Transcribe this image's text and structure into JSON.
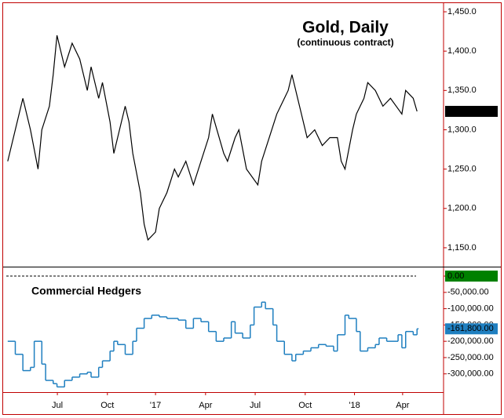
{
  "chart_data": [
    {
      "type": "line",
      "title": "Gold, Daily",
      "subtitle": "(continuous contract)",
      "color": "#000000",
      "xlim": [
        0,
        116
      ],
      "ylim": [
        1126,
        1460
      ],
      "yticks": [
        {
          "value": 1150,
          "label": "1,150.0"
        },
        {
          "value": 1200,
          "label": "1,200.0"
        },
        {
          "value": 1250,
          "label": "1,250.0"
        },
        {
          "value": 1300,
          "label": "1,300.0"
        },
        {
          "value": 1350,
          "label": "1,350.0"
        },
        {
          "value": 1400,
          "label": "1,400.0"
        },
        {
          "value": 1450,
          "label": "1,450.0"
        }
      ],
      "x": [
        1,
        5,
        7,
        9,
        10,
        12,
        13,
        14,
        16,
        18,
        20,
        22,
        23,
        25,
        26,
        28,
        29,
        30,
        32,
        33,
        34,
        36,
        37,
        38,
        40,
        41,
        43,
        45,
        46,
        48,
        50,
        52,
        54,
        55,
        58,
        59,
        61,
        62,
        64,
        67,
        68,
        70,
        72,
        75,
        76,
        78,
        80,
        82,
        84,
        86,
        88,
        89,
        90,
        92,
        93,
        95,
        96,
        98,
        100,
        102,
        105,
        106,
        108,
        109
      ],
      "values": [
        1260,
        1340,
        1300,
        1250,
        1300,
        1330,
        1370,
        1420,
        1380,
        1410,
        1390,
        1350,
        1380,
        1340,
        1360,
        1310,
        1270,
        1290,
        1330,
        1310,
        1270,
        1220,
        1180,
        1160,
        1170,
        1200,
        1220,
        1250,
        1240,
        1260,
        1230,
        1260,
        1290,
        1320,
        1270,
        1260,
        1290,
        1300,
        1250,
        1230,
        1260,
        1290,
        1320,
        1350,
        1370,
        1330,
        1290,
        1300,
        1280,
        1290,
        1290,
        1260,
        1250,
        1300,
        1320,
        1340,
        1360,
        1350,
        1330,
        1340,
        1320,
        1350,
        1340,
        1323.4
      ],
      "last_label": "1,323.4"
    },
    {
      "type": "step",
      "title": "Commercial Hedgers",
      "color": "#1f7fc0",
      "xlim": [
        0,
        116
      ],
      "ylim": [
        -356000,
        29000
      ],
      "xticks": [
        {
          "value": 14.1,
          "label": "Jul"
        },
        {
          "value": 27.3,
          "label": "Oct"
        },
        {
          "value": 40,
          "label": "'17"
        },
        {
          "value": 53.2,
          "label": "Apr"
        },
        {
          "value": 66.3,
          "label": "Jul"
        },
        {
          "value": 79.5,
          "label": "Oct"
        },
        {
          "value": 92.5,
          "label": "'18"
        },
        {
          "value": 105.2,
          "label": "Apr"
        }
      ],
      "yticks": [
        {
          "value": 0,
          "label": "0.00"
        },
        {
          "value": -50000,
          "label": "-50,000.00"
        },
        {
          "value": -100000,
          "label": "-100,000.00"
        },
        {
          "value": -150000,
          "label": "-150,000.00"
        },
        {
          "value": -200000,
          "label": "-200,000.00"
        },
        {
          "value": -250000,
          "label": "-250,000.00"
        },
        {
          "value": -300000,
          "label": "-300,000.00"
        }
      ],
      "x": [
        1,
        3,
        5,
        7,
        8,
        10,
        11,
        13,
        14,
        16,
        18,
        20,
        22,
        23,
        25,
        26,
        28,
        29,
        30,
        32,
        34,
        35,
        37,
        39,
        41,
        43,
        46,
        48,
        50,
        52,
        54,
        56,
        58,
        60,
        61,
        63,
        65,
        66,
        68,
        69,
        71,
        72,
        74,
        76,
        77,
        79,
        81,
        83,
        85,
        87,
        88,
        90,
        91,
        93,
        94,
        96,
        98,
        99,
        101,
        104,
        105,
        106,
        108,
        109
      ],
      "values": [
        -200000,
        -240000,
        -290000,
        -280000,
        -200000,
        -270000,
        -320000,
        -330000,
        -340000,
        -320000,
        -310000,
        -300000,
        -295000,
        -310000,
        -280000,
        -260000,
        -230000,
        -200000,
        -210000,
        -240000,
        -200000,
        -160000,
        -130000,
        -120000,
        -125000,
        -130000,
        -135000,
        -160000,
        -130000,
        -140000,
        -170000,
        -200000,
        -190000,
        -140000,
        -175000,
        -190000,
        -150000,
        -95000,
        -80000,
        -100000,
        -150000,
        -200000,
        -240000,
        -260000,
        -240000,
        -230000,
        -220000,
        -210000,
        -215000,
        -230000,
        -180000,
        -120000,
        -130000,
        -170000,
        -230000,
        -220000,
        -210000,
        -190000,
        -200000,
        -180000,
        -220000,
        -170000,
        -180000,
        -161800
      ],
      "last_label": "-161,800.00"
    }
  ]
}
